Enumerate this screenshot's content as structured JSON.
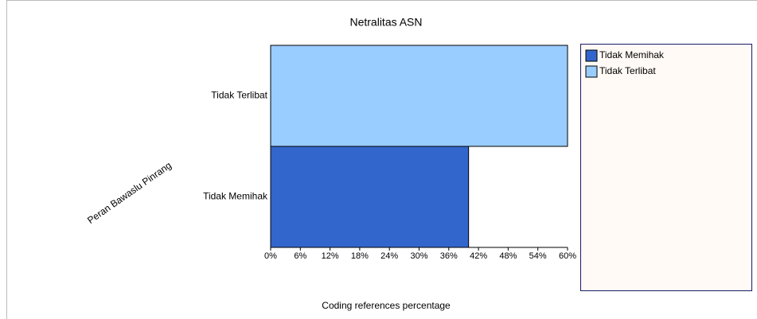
{
  "chart_data": {
    "type": "barh",
    "title": "Netralitas ASN",
    "xlabel": "Coding references percentage",
    "ylabel": "Peran Bawaslu Pinrang",
    "categories": [
      "Tidak Memihak",
      "Tidak Terlibat"
    ],
    "series": [
      {
        "name": "Tidak Memihak",
        "color": "#3366cc",
        "values": [
          40,
          null
        ]
      },
      {
        "name": "Tidak Terlibat",
        "color": "#99ccff",
        "values": [
          null,
          60
        ]
      }
    ],
    "xlim": [
      0,
      60
    ],
    "xticks": [
      {
        "value": 0,
        "label": "0%"
      },
      {
        "value": 6,
        "label": "6%"
      },
      {
        "value": 12,
        "label": "12%"
      },
      {
        "value": 18,
        "label": "18%"
      },
      {
        "value": 24,
        "label": "24%"
      },
      {
        "value": 30,
        "label": "30%"
      },
      {
        "value": 36,
        "label": "36%"
      },
      {
        "value": 42,
        "label": "42%"
      },
      {
        "value": 48,
        "label": "48%"
      },
      {
        "value": 54,
        "label": "54%"
      },
      {
        "value": 60,
        "label": "60%"
      }
    ],
    "legend": "right"
  }
}
